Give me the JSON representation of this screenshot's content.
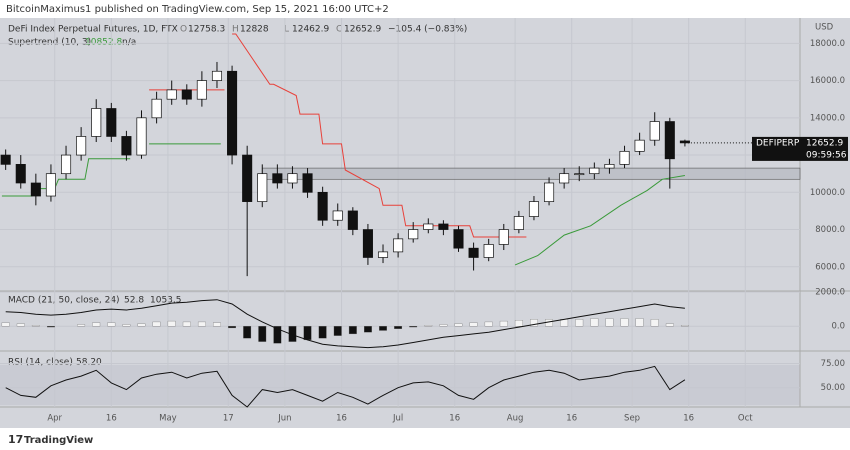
{
  "header": "BitcoinMaximus1 published on TradingView.com, Sep 15, 2021 16:00 UTC+2",
  "footer": "TradingView",
  "chart_data": {
    "type": "candlestick",
    "symbol_title": "DeFi Index Perpetual Futures, 1D, FTX",
    "ohlc_labels": [
      "O",
      "H",
      "L",
      "C"
    ],
    "change": "−105.4 (−0.83%)",
    "currency": "USD",
    "price_tag": {
      "symbol": "DEFIPERP",
      "countdown": "09:59:56"
    },
    "x": [
      -13,
      -9,
      -5,
      -1,
      3,
      7,
      11,
      15,
      19,
      23,
      27,
      31,
      35,
      39,
      43,
      47,
      51,
      55,
      59,
      63,
      67,
      71,
      75,
      79,
      83,
      87,
      91,
      95,
      99,
      103,
      107,
      111,
      115,
      119,
      123,
      127,
      131,
      135,
      139,
      143,
      147,
      151,
      155,
      159,
      163,
      167
    ],
    "open": [
      12000,
      11500,
      10500,
      9800,
      11000,
      12000,
      13000,
      14500,
      13000,
      12000,
      14000,
      15000,
      15500,
      15000,
      16000,
      16500,
      12000,
      9500,
      11000,
      10500,
      11000,
      10000,
      8500,
      9000,
      8000,
      6500,
      6800,
      7500,
      8000,
      8300,
      8000,
      7000,
      6500,
      7200,
      8000,
      8700,
      9500,
      10500,
      11000,
      11000,
      11300,
      11500,
      12200,
      12800,
      13800,
      12758.3
    ],
    "high": [
      12300,
      12000,
      11000,
      11500,
      12500,
      13500,
      15000,
      14800,
      13300,
      14400,
      15400,
      16000,
      15800,
      16500,
      17000,
      16800,
      12500,
      11500,
      11500,
      11400,
      11300,
      10300,
      9400,
      9200,
      8300,
      7200,
      7800,
      8400,
      8600,
      8500,
      8200,
      7300,
      7500,
      8300,
      9000,
      9800,
      10800,
      11300,
      11400,
      11600,
      11800,
      12500,
      13200,
      14300,
      14000,
      12828.0
    ],
    "low": [
      11200,
      10200,
      9300,
      9500,
      10700,
      11700,
      12700,
      12700,
      11700,
      11800,
      13700,
      14700,
      14700,
      14600,
      15600,
      11500,
      5500,
      9200,
      10200,
      10200,
      9700,
      8200,
      8200,
      7700,
      6100,
      6200,
      6500,
      7300,
      7800,
      7700,
      6800,
      5800,
      6300,
      6900,
      7800,
      8500,
      9300,
      10200,
      10600,
      10700,
      11000,
      11300,
      12000,
      12500,
      10200,
      12462.9
    ],
    "close": [
      11500,
      10500,
      9800,
      11000,
      12000,
      13000,
      14500,
      13000,
      12000,
      14000,
      15000,
      15500,
      15000,
      16000,
      16500,
      12000,
      9500,
      11000,
      10500,
      11000,
      10000,
      8500,
      9000,
      8000,
      6500,
      6800,
      7500,
      8000,
      8300,
      8000,
      7000,
      6500,
      7200,
      8000,
      8700,
      9500,
      10500,
      11000,
      11000,
      11300,
      11500,
      12200,
      12800,
      13800,
      11800,
      12652.9
    ],
    "up_color": "#ffffff",
    "down_color": "#111111",
    "xlim": [
      -14.5,
      197.5
    ],
    "xticks": [
      {
        "value": 0,
        "label": "Apr"
      },
      {
        "value": 15,
        "label": "16"
      },
      {
        "value": 30,
        "label": "May"
      },
      {
        "value": 46,
        "label": "17"
      },
      {
        "value": 61,
        "label": "Jun"
      },
      {
        "value": 76,
        "label": "16"
      },
      {
        "value": 91,
        "label": "Jul"
      },
      {
        "value": 106,
        "label": "16"
      },
      {
        "value": 122,
        "label": "Aug"
      },
      {
        "value": 137,
        "label": "16"
      },
      {
        "value": 153,
        "label": "Sep"
      },
      {
        "value": 168,
        "label": "16"
      },
      {
        "value": 183,
        "label": "Oct"
      }
    ],
    "ylim": [
      4700,
      19360
    ],
    "yticks": [
      {
        "value": 6000,
        "label": "6000.0"
      },
      {
        "value": 8000,
        "label": "8000.0"
      },
      {
        "value": 10000,
        "label": "10000.0"
      },
      {
        "value": 12000,
        "label": "12000.0"
      },
      {
        "value": 14000,
        "label": "14000.0"
      },
      {
        "value": 16000,
        "label": "16000.0"
      },
      {
        "value": 18000,
        "label": "18000.0"
      }
    ],
    "zone": {
      "from_x": 55,
      "low": 10700,
      "high": 11300
    },
    "supertrend": {
      "title": "Supertrend (10, 3)",
      "last": "10852.8",
      "other": "n/a",
      "series": [
        {
          "name": "up",
          "color": "#3a9a3a",
          "x": [
            -14,
            -6,
            -5,
            0,
            1,
            8,
            9,
            20,
            24,
            25,
            44,
            121,
            122,
            128,
            135,
            142,
            150,
            157,
            161,
            167
          ],
          "values": [
            9800,
            9800,
            10200,
            10200,
            10700,
            10700,
            11800,
            11800,
            null,
            12600,
            12600,
            null,
            6100,
            6600,
            7700,
            8200,
            9300,
            10100,
            10700,
            10900
          ]
        },
        {
          "name": "down",
          "color": "#e8413a",
          "x": [
            25,
            45,
            46,
            47,
            48,
            57,
            58,
            64,
            65,
            70,
            71,
            76,
            77,
            86,
            87,
            92,
            93,
            110,
            111,
            125
          ],
          "values": [
            15500,
            15500,
            null,
            18500,
            18500,
            15800,
            15800,
            15200,
            14200,
            14200,
            12600,
            12600,
            11200,
            10200,
            9300,
            9300,
            8200,
            8200,
            7600,
            7600
          ]
        }
      ]
    },
    "macd": {
      "title": "MACD (21, 50, close, 24)",
      "hist_last": "52.8",
      "macd_last": "1053.5",
      "ylim": [
        -1450,
        2060
      ],
      "yticks": [
        {
          "value": 0,
          "label": "0.0"
        },
        {
          "value": 2000,
          "label": "2000.0"
        }
      ],
      "line": [
        850,
        800,
        700,
        650,
        700,
        800,
        950,
        1000,
        950,
        1050,
        1200,
        1350,
        1400,
        1500,
        1550,
        1300,
        700,
        250,
        -150,
        -500,
        -800,
        -1050,
        -1150,
        -1200,
        -1250,
        -1200,
        -1100,
        -950,
        -800,
        -650,
        -550,
        -450,
        -350,
        -200,
        -50,
        100,
        250,
        400,
        550,
        700,
        850,
        1000,
        1150,
        1300,
        1150,
        1053.5
      ],
      "hist": [
        200,
        150,
        50,
        -50,
        0,
        100,
        200,
        200,
        100,
        150,
        250,
        300,
        250,
        250,
        200,
        -100,
        -700,
        -900,
        -1000,
        -900,
        -800,
        -700,
        -550,
        -450,
        -350,
        -250,
        -150,
        -50,
        50,
        100,
        150,
        200,
        250,
        300,
        350,
        400,
        400,
        400,
        400,
        450,
        450,
        450,
        450,
        400,
        150,
        52.8
      ]
    },
    "rsi": {
      "title": "RSI (14, close)",
      "last": "58.20",
      "ylim": [
        30,
        88
      ],
      "yticks": [
        {
          "value": 50,
          "label": "50.00"
        },
        {
          "value": 75,
          "label": "75.00"
        }
      ],
      "values": [
        50,
        42,
        40,
        52,
        58,
        62,
        68,
        55,
        48,
        60,
        64,
        66,
        60,
        65,
        67,
        42,
        30,
        48,
        45,
        48,
        42,
        36,
        45,
        40,
        33,
        42,
        50,
        55,
        56,
        52,
        42,
        38,
        50,
        58,
        62,
        66,
        68,
        65,
        58,
        60,
        62,
        66,
        68,
        72,
        48,
        58.2
      ]
    }
  }
}
